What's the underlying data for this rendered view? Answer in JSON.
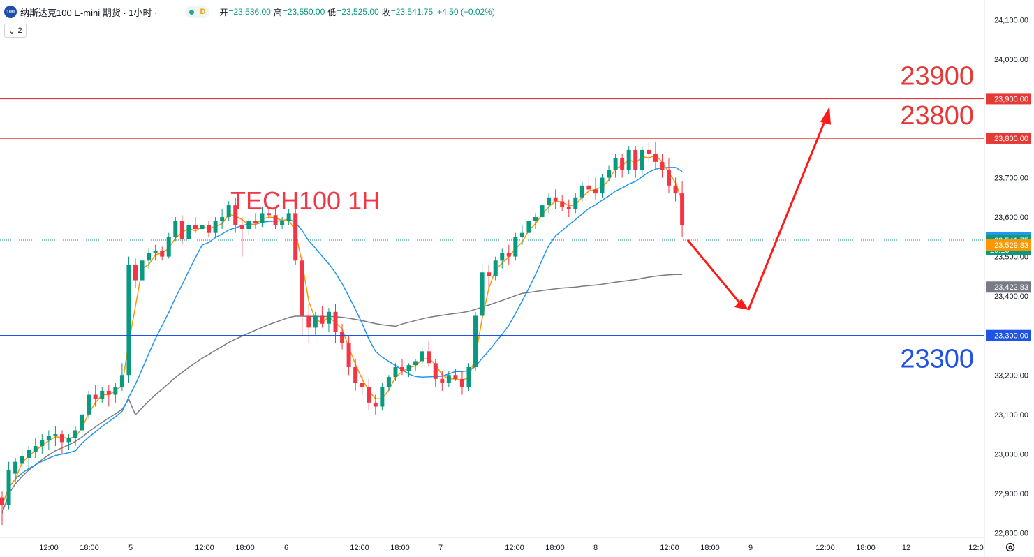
{
  "header": {
    "symbol_icon": "100",
    "title": "纳斯达克100 E-mini 期货 · 1小时 ·",
    "d_badge": "D",
    "open_label": "开",
    "open_value": "=23,536.00",
    "high_label": "高",
    "high_value": "=23,550.00",
    "low_label": "低",
    "low_value": "=23,525.00",
    "close_label": "收",
    "close_value": "=23,541.75",
    "change": "+4.50 (+0.02%)",
    "indicator_count": "2"
  },
  "colors": {
    "up": "#089981",
    "down": "#f23645",
    "ma_fast": "#ff9800",
    "ma_mid": "#2196f3",
    "ma_slow": "#787b86",
    "resistance": "#e53935",
    "support": "#1e53e5",
    "arrow": "#ff1a1a"
  },
  "chart_data": {
    "type": "candlestick",
    "title": "TECH100 1H",
    "ylim": [
      22760,
      24120
    ],
    "y_ticks": [
      "24,100.00",
      "24,000.00",
      "23,900.00",
      "23,800.00",
      "23,700.00",
      "23,600.00",
      "23,500.00",
      "23,400.00",
      "23,300.00",
      "23,200.00",
      "23,100.00",
      "23,000.00",
      "22,900.00",
      "22,800.00"
    ],
    "x_ticks": [
      "12:00",
      "18:00",
      "5",
      "12:00",
      "18:00",
      "6",
      "12:00",
      "18:00",
      "7",
      "12:00",
      "18:00",
      "8",
      "12:00",
      "18:00",
      "9",
      "12:00",
      "18:00",
      "12",
      "12:0"
    ],
    "candles": [
      [
        22890,
        22905,
        22820,
        22870
      ],
      [
        22870,
        22980,
        22860,
        22960
      ],
      [
        22950,
        22990,
        22930,
        22980
      ],
      [
        22975,
        23010,
        22950,
        22995
      ],
      [
        22990,
        23020,
        22960,
        23010
      ],
      [
        23005,
        23040,
        22990,
        23020
      ],
      [
        23020,
        23050,
        23000,
        23035
      ],
      [
        23035,
        23060,
        23010,
        23045
      ],
      [
        23045,
        23070,
        23020,
        23050
      ],
      [
        23050,
        23060,
        23000,
        23030
      ],
      [
        23030,
        23050,
        23010,
        23040
      ],
      [
        23040,
        23070,
        23020,
        23060
      ],
      [
        23060,
        23110,
        23040,
        23100
      ],
      [
        23100,
        23160,
        23090,
        23150
      ],
      [
        23150,
        23175,
        23120,
        23140
      ],
      [
        23140,
        23170,
        23130,
        23160
      ],
      [
        23160,
        23175,
        23120,
        23150
      ],
      [
        23150,
        23180,
        23130,
        23170
      ],
      [
        23170,
        23230,
        23160,
        23200
      ],
      [
        23200,
        23500,
        23180,
        23480
      ],
      [
        23480,
        23495,
        23420,
        23440
      ],
      [
        23440,
        23500,
        23430,
        23490
      ],
      [
        23490,
        23520,
        23470,
        23510
      ],
      [
        23510,
        23530,
        23490,
        23515
      ],
      [
        23515,
        23525,
        23490,
        23500
      ],
      [
        23500,
        23560,
        23495,
        23550
      ],
      [
        23550,
        23600,
        23540,
        23590
      ],
      [
        23590,
        23605,
        23530,
        23545
      ],
      [
        23545,
        23590,
        23535,
        23580
      ],
      [
        23580,
        23600,
        23560,
        23570
      ],
      [
        23570,
        23590,
        23550,
        23580
      ],
      [
        23580,
        23590,
        23550,
        23560
      ],
      [
        23560,
        23600,
        23550,
        23590
      ],
      [
        23590,
        23620,
        23570,
        23600
      ],
      [
        23600,
        23640,
        23590,
        23630
      ],
      [
        23630,
        23650,
        23560,
        23580
      ],
      [
        23580,
        23600,
        23500,
        23570
      ],
      [
        23570,
        23595,
        23555,
        23590
      ],
      [
        23590,
        23610,
        23570,
        23585
      ],
      [
        23585,
        23625,
        23575,
        23610
      ],
      [
        23610,
        23625,
        23600,
        23605
      ],
      [
        23605,
        23625,
        23570,
        23580
      ],
      [
        23580,
        23600,
        23570,
        23590
      ],
      [
        23590,
        23620,
        23580,
        23610
      ],
      [
        23610,
        23622,
        23480,
        23490
      ],
      [
        23490,
        23500,
        23300,
        23350
      ],
      [
        23350,
        23380,
        23280,
        23320
      ],
      [
        23320,
        23360,
        23300,
        23350
      ],
      [
        23350,
        23375,
        23320,
        23330
      ],
      [
        23330,
        23370,
        23310,
        23360
      ],
      [
        23360,
        23380,
        23280,
        23310
      ],
      [
        23310,
        23330,
        23265,
        23280
      ],
      [
        23280,
        23300,
        23200,
        23220
      ],
      [
        23220,
        23240,
        23160,
        23180
      ],
      [
        23180,
        23200,
        23150,
        23170
      ],
      [
        23170,
        23190,
        23110,
        23130
      ],
      [
        23130,
        23150,
        23100,
        23120
      ],
      [
        23120,
        23180,
        23110,
        23170
      ],
      [
        23170,
        23200,
        23160,
        23195
      ],
      [
        23195,
        23230,
        23185,
        23220
      ],
      [
        23220,
        23240,
        23200,
        23210
      ],
      [
        23210,
        23230,
        23195,
        23225
      ],
      [
        23225,
        23240,
        23210,
        23235
      ],
      [
        23235,
        23270,
        23225,
        23260
      ],
      [
        23260,
        23285,
        23220,
        23230
      ],
      [
        23230,
        23240,
        23170,
        23190
      ],
      [
        23190,
        23210,
        23160,
        23180
      ],
      [
        23180,
        23210,
        23170,
        23200
      ],
      [
        23200,
        23215,
        23185,
        23190
      ],
      [
        23190,
        23210,
        23150,
        23170
      ],
      [
        23170,
        23230,
        23160,
        23220
      ],
      [
        23220,
        23360,
        23210,
        23350
      ],
      [
        23350,
        23480,
        23340,
        23460
      ],
      [
        23460,
        23480,
        23420,
        23450
      ],
      [
        23450,
        23500,
        23440,
        23490
      ],
      [
        23490,
        23520,
        23470,
        23510
      ],
      [
        23510,
        23530,
        23480,
        23500
      ],
      [
        23500,
        23560,
        23490,
        23550
      ],
      [
        23550,
        23580,
        23530,
        23560
      ],
      [
        23560,
        23600,
        23545,
        23590
      ],
      [
        23590,
        23610,
        23570,
        23600
      ],
      [
        23600,
        23640,
        23585,
        23630
      ],
      [
        23630,
        23660,
        23610,
        23650
      ],
      [
        23650,
        23670,
        23620,
        23640
      ],
      [
        23640,
        23655,
        23615,
        23625
      ],
      [
        23625,
        23645,
        23600,
        23620
      ],
      [
        23620,
        23660,
        23610,
        23650
      ],
      [
        23650,
        23690,
        23640,
        23680
      ],
      [
        23680,
        23700,
        23660,
        23670
      ],
      [
        23670,
        23700,
        23645,
        23660
      ],
      [
        23660,
        23710,
        23650,
        23700
      ],
      [
        23700,
        23730,
        23690,
        23720
      ],
      [
        23720,
        23760,
        23700,
        23750
      ],
      [
        23750,
        23760,
        23700,
        23720
      ],
      [
        23720,
        23780,
        23710,
        23770
      ],
      [
        23770,
        23780,
        23700,
        23720
      ],
      [
        23720,
        23780,
        23710,
        23770
      ],
      [
        23770,
        23790,
        23740,
        23760
      ],
      [
        23760,
        23790,
        23720,
        23740
      ],
      [
        23740,
        23760,
        23700,
        23720
      ],
      [
        23720,
        23750,
        23660,
        23680
      ],
      [
        23680,
        23700,
        23640,
        23660
      ],
      [
        23660,
        23690,
        23550,
        23580
      ]
    ],
    "annotations": [
      {
        "label": "23900",
        "value": 23900,
        "price_tag": "23,900.00",
        "color": "resistance"
      },
      {
        "label": "23800",
        "value": 23800,
        "price_tag": "23,800.00",
        "color": "resistance"
      },
      {
        "label": "23300",
        "value": 23300,
        "price_tag": "23,300.00",
        "color": "support"
      }
    ],
    "price_badges": [
      {
        "text": "23,548.83",
        "value": 23548.83,
        "color": "#2196f3"
      },
      {
        "text": "23,541.75",
        "value": 23541.75,
        "color": "#089981",
        "sub": "29:16"
      },
      {
        "text": "23,529.33",
        "value": 23529.33,
        "color": "#ff9800"
      },
      {
        "text": "23,422.83",
        "value": 23422.83,
        "color": "#787b86"
      }
    ]
  }
}
